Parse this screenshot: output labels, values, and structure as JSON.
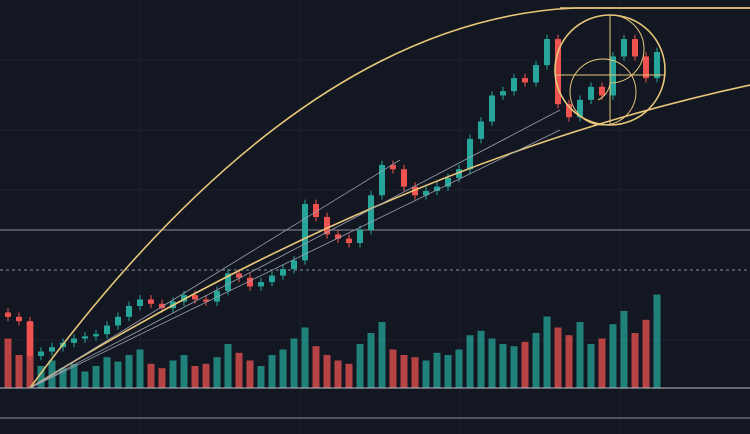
{
  "chart_data": {
    "type": "candlestick",
    "up_color": "#26a69a",
    "down_color": "#ef5350",
    "ylim": [
      0,
      100
    ],
    "open": [
      28,
      27,
      26,
      18,
      19,
      20,
      21,
      22,
      22.5,
      23,
      25,
      27,
      29.5,
      31,
      30,
      29,
      30.5,
      32,
      31,
      30.5,
      33,
      37,
      36,
      34,
      35,
      36.5,
      38,
      40,
      53,
      50,
      46,
      45,
      44,
      47,
      55,
      62,
      61,
      57,
      55,
      56,
      57,
      59,
      61,
      68,
      72,
      78,
      79,
      82,
      81,
      85,
      91,
      76,
      73,
      77,
      80,
      78,
      87,
      91,
      87,
      82
    ],
    "high": [
      29,
      28,
      27,
      20,
      21,
      22,
      23,
      23.5,
      24,
      26,
      28,
      30.5,
      32,
      32,
      31,
      31.5,
      33,
      33,
      32,
      34,
      38,
      38,
      37,
      36,
      37.5,
      39,
      41,
      54,
      54,
      51,
      47,
      46,
      48,
      56,
      63,
      63,
      62,
      58,
      57,
      58,
      60,
      62,
      69,
      73,
      79,
      80,
      83,
      83,
      86,
      92,
      92,
      77,
      78,
      81,
      81,
      88,
      92,
      92,
      88,
      89
    ],
    "low": [
      26,
      25,
      17,
      17,
      18,
      19,
      20,
      21,
      21.5,
      22,
      24,
      26,
      28.5,
      29,
      28,
      28,
      29.5,
      30,
      29.5,
      29.5,
      32,
      35,
      33,
      33,
      34,
      35.5,
      37,
      39,
      49,
      45,
      44,
      43,
      43,
      46,
      54,
      60,
      56,
      54,
      54,
      55,
      56,
      58,
      60,
      67,
      71,
      77,
      78,
      80,
      80,
      84,
      75,
      72,
      72,
      76,
      77,
      77,
      86,
      86,
      81,
      81
    ],
    "close": [
      27,
      26,
      18,
      19,
      20,
      21,
      22,
      22.5,
      23,
      25,
      27,
      29.5,
      31,
      30,
      29,
      30.5,
      32,
      31,
      30.5,
      33,
      37,
      36,
      34,
      35,
      36.5,
      38,
      40,
      53,
      50,
      46,
      45,
      44,
      47,
      55,
      62,
      61,
      57,
      55,
      56,
      57,
      59,
      61,
      68,
      72,
      78,
      79,
      82,
      81,
      85,
      91,
      76,
      73,
      77,
      80,
      78,
      87,
      91,
      87,
      82,
      88
    ],
    "volume": [
      45,
      30,
      60,
      20,
      25,
      18,
      22,
      15,
      20,
      28,
      24,
      30,
      35,
      22,
      18,
      25,
      30,
      20,
      22,
      28,
      40,
      32,
      25,
      20,
      30,
      35,
      45,
      55,
      38,
      30,
      25,
      22,
      40,
      50,
      60,
      35,
      30,
      28,
      25,
      32,
      30,
      35,
      48,
      52,
      45,
      40,
      38,
      42,
      50,
      65,
      55,
      48,
      60,
      40,
      45,
      58,
      70,
      50,
      62,
      85
    ],
    "volume_ylim": [
      0,
      100
    ]
  }
}
